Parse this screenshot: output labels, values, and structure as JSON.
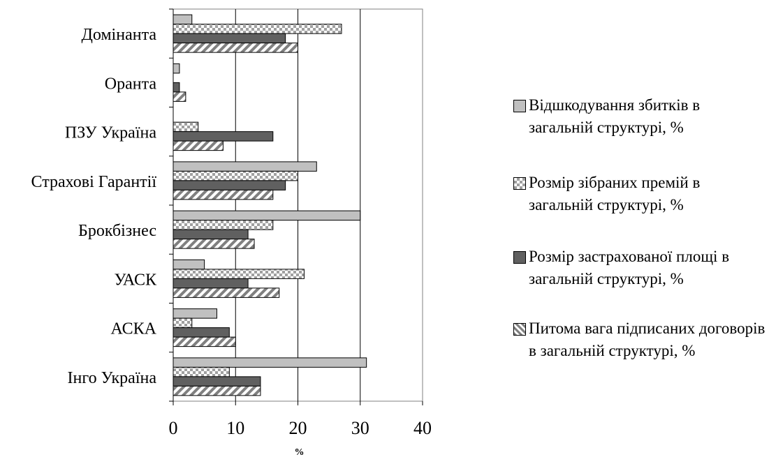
{
  "chart_data": {
    "type": "bar",
    "orientation": "horizontal",
    "categories": [
      "Домінанта",
      "Оранта",
      "ПЗУ Україна",
      "Страхові Гарантії",
      "Брокбізнес",
      "УАСК",
      "АСКА",
      "Інго Україна"
    ],
    "series": [
      {
        "name": "Відшкодування збитків в загальній структурі, %",
        "values": [
          3,
          1,
          0,
          23,
          30,
          5,
          7,
          31
        ],
        "pattern": "solid-light",
        "color": "#c0c0c0"
      },
      {
        "name": "Розмір зібраних премій в загальній структурі, %",
        "values": [
          27,
          0,
          4,
          20,
          16,
          21,
          3,
          9
        ],
        "pattern": "checker",
        "color": "#a0a0a0"
      },
      {
        "name": "Розмір застрахованої площі в загальній структурі, %",
        "values": [
          18,
          1,
          16,
          18,
          12,
          12,
          9,
          14
        ],
        "pattern": "solid-dark",
        "color": "#606060"
      },
      {
        "name": "Питома вага підписаних договорів в загальній структурі, %",
        "values": [
          20,
          2,
          8,
          16,
          13,
          17,
          10,
          14
        ],
        "pattern": "diagonal",
        "color": "#808080"
      }
    ],
    "xlim": [
      0,
      40
    ],
    "xticks": [
      "0",
      "10",
      "20",
      "30",
      "40"
    ],
    "xlabel": "%",
    "ylabel": "",
    "title": "",
    "grid": "vertical",
    "legend_position": "right"
  }
}
